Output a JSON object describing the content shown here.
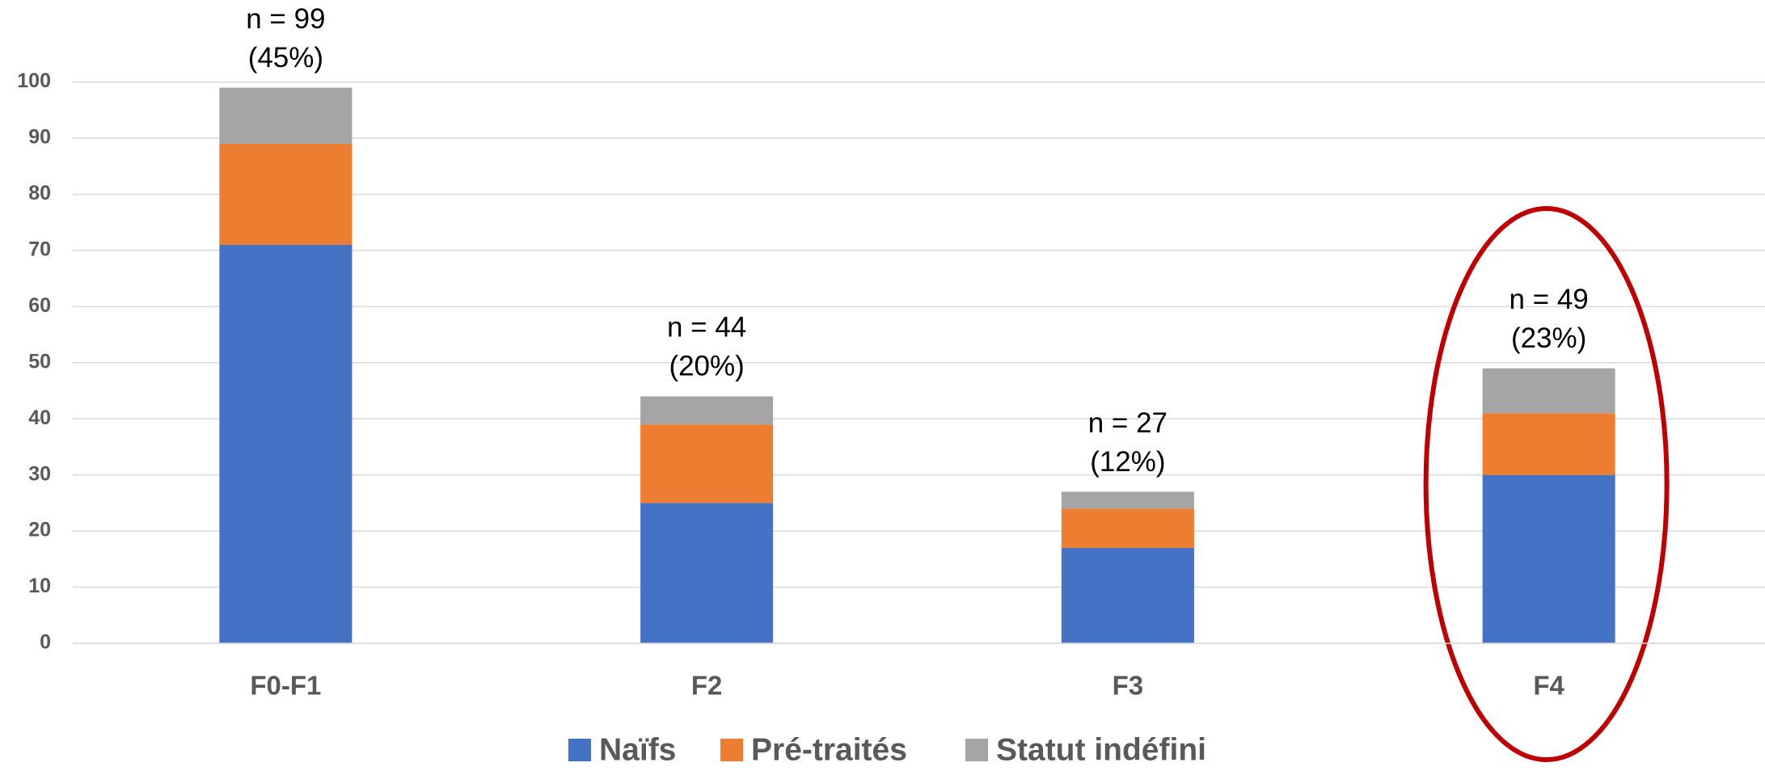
{
  "chart_data": {
    "type": "stacked_bar",
    "categories": [
      "F0-F1",
      "F2",
      "F3",
      "F4"
    ],
    "series": [
      {
        "name": "Naïfs",
        "color": "#4472c4",
        "values": [
          71,
          25,
          17,
          30
        ]
      },
      {
        "name": "Pré-traités",
        "color": "#ed7d31",
        "values": [
          18,
          14,
          7,
          11
        ]
      },
      {
        "name": "Statut indéfini",
        "color": "#a5a5a5",
        "values": [
          10,
          5,
          3,
          8
        ]
      }
    ],
    "annotations": [
      {
        "n": "n = 99",
        "share": "(45%)"
      },
      {
        "n": "n = 44",
        "share": "(20%)"
      },
      {
        "n": "n = 27",
        "share": "(12%)"
      },
      {
        "n": "n = 49",
        "share": "(23%)"
      }
    ],
    "highlight": "F4",
    "ylim": [
      0,
      100
    ],
    "yticks": [
      0,
      10,
      20,
      30,
      40,
      50,
      60,
      70,
      80,
      90,
      100
    ],
    "grid": true,
    "legend": "bottom"
  }
}
